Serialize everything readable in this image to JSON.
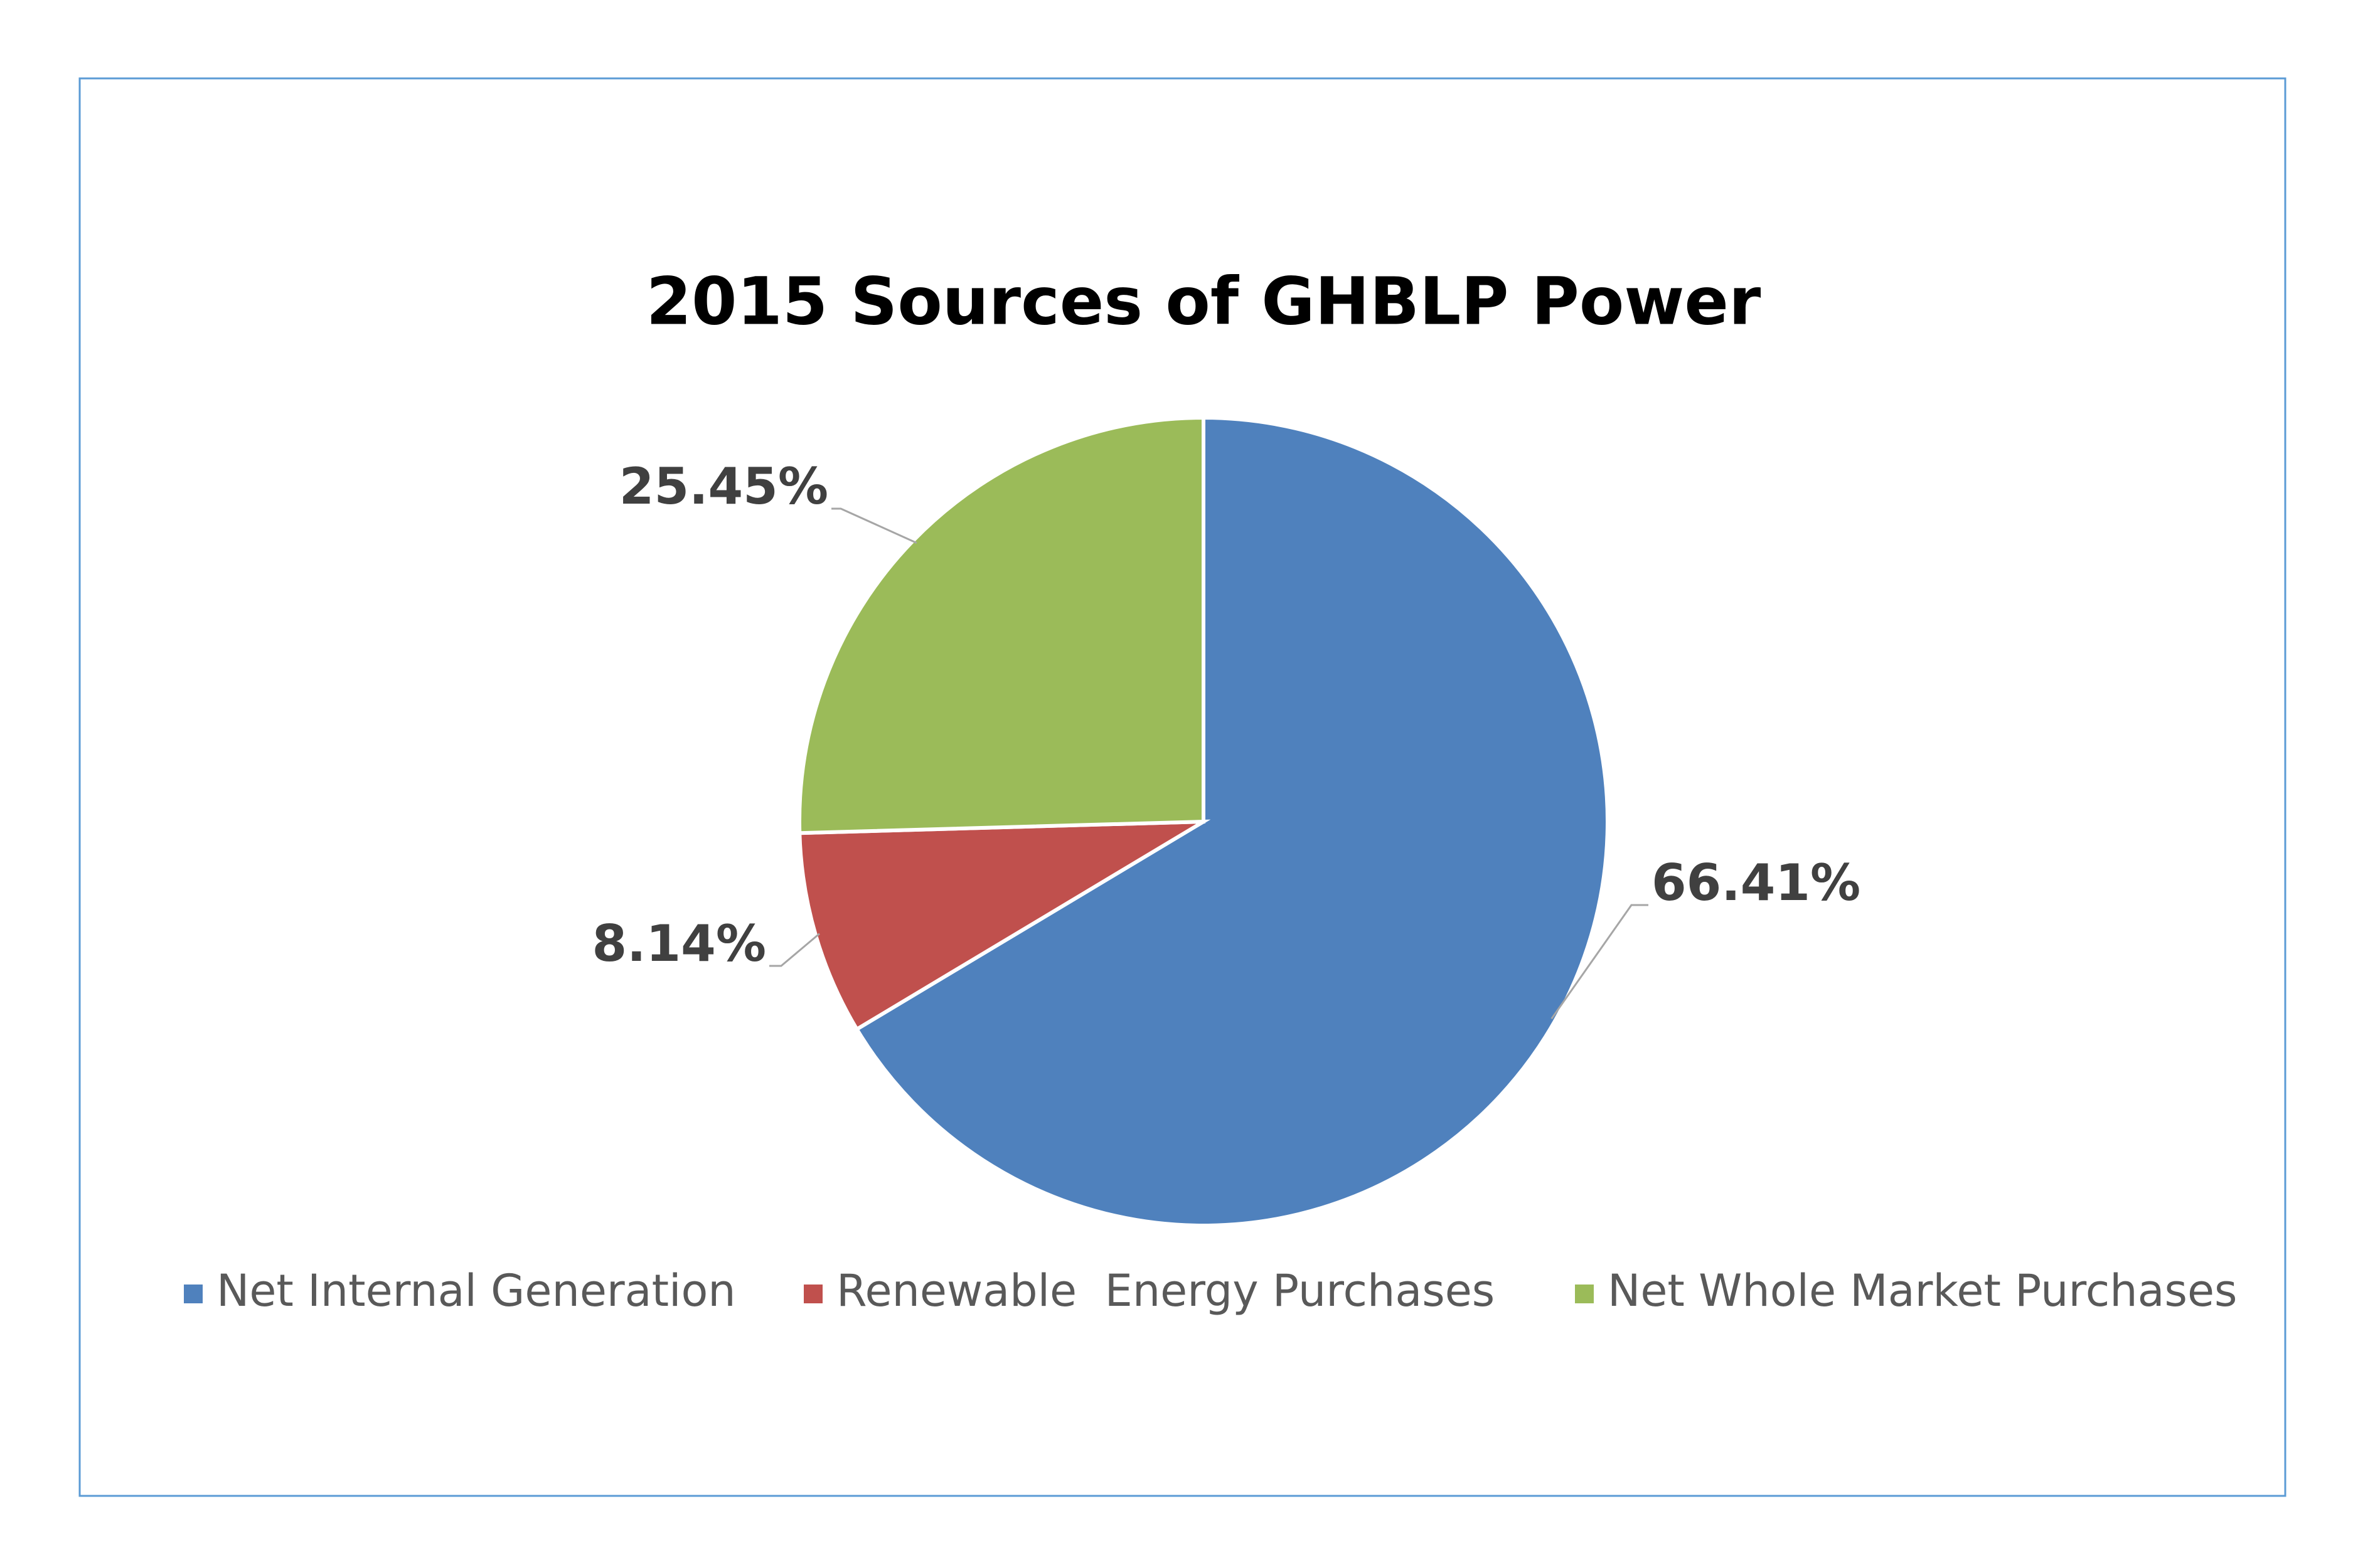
{
  "chart_data": {
    "type": "pie",
    "title": "2015 Sources of GHBLP Power",
    "categories": [
      "Net Internal Generation",
      "Renewable  Energy Purchases",
      "Net Whole Market Purchases"
    ],
    "values": [
      66.41,
      8.14,
      25.45
    ],
    "value_labels": [
      "66.41%",
      "8.14%",
      "25.45%"
    ],
    "colors": [
      "#4f81bd",
      "#c0504d",
      "#9bbb59"
    ],
    "legend": "bottom"
  }
}
